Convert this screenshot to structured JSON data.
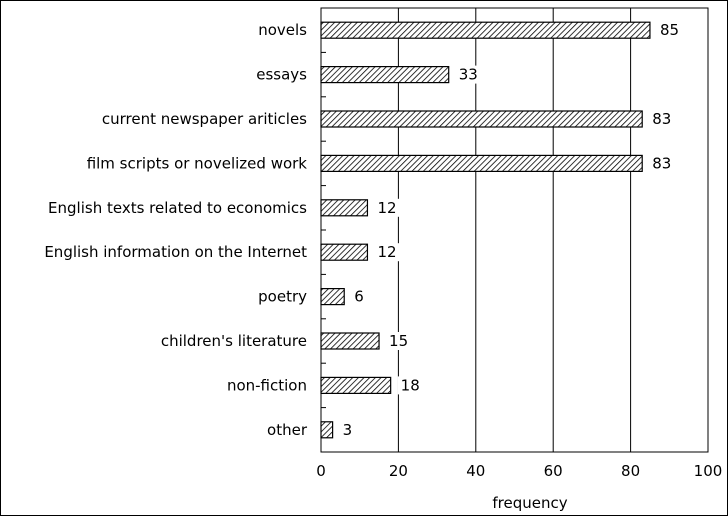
{
  "chart_data": {
    "type": "bar",
    "orientation": "horizontal",
    "categories": [
      "novels",
      "essays",
      "current newspaper ariticles",
      "film scripts or novelized work",
      "English texts related to economics",
      "English information on the Internet",
      "poetry",
      "children's literature",
      "non-fiction",
      "other"
    ],
    "values": [
      85,
      33,
      83,
      83,
      12,
      12,
      6,
      15,
      18,
      3
    ],
    "xlabel": "frequency",
    "ylabel": "",
    "title": "",
    "xlim": [
      0,
      100
    ],
    "xticks": [
      0,
      20,
      40,
      60,
      80,
      100
    ],
    "grid": "vertical",
    "bar_fill": "hatched"
  }
}
